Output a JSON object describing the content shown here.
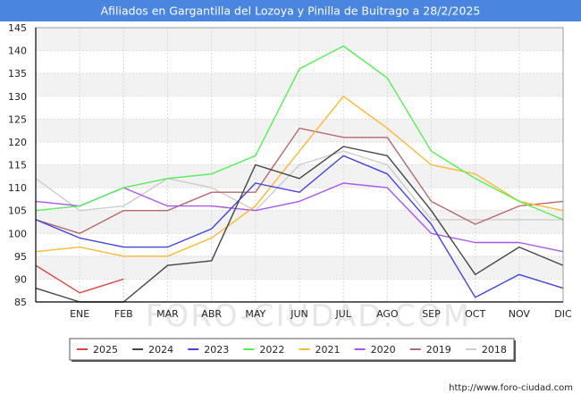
{
  "title": "Afiliados en Gargantilla del Lozoya y Pinilla de Buitrago a 28/2/2025",
  "watermark": "FORO-CIUDAD.COM",
  "source": "http://www.foro-ciudad.com",
  "colors": {
    "title_bg": "#4a86e0",
    "band": "#f2f2f2",
    "grid": "#d9d9d9",
    "axis": "#000000"
  },
  "chart_data": {
    "type": "line",
    "title": "Afiliados en Gargantilla del Lozoya y Pinilla de Buitrago a 28/2/2025",
    "x": [
      "",
      "ENE",
      "FEB",
      "MAR",
      "ABR",
      "MAY",
      "JUN",
      "JUL",
      "AGO",
      "SEP",
      "OCT",
      "NOV",
      "DIC"
    ],
    "ylim": [
      85,
      145
    ],
    "yticks": [
      85,
      90,
      95,
      100,
      105,
      110,
      115,
      120,
      125,
      130,
      135,
      140,
      145
    ],
    "grid": true,
    "legend_position": "bottom",
    "series": [
      {
        "name": "2025",
        "color": "#dd4444",
        "values": [
          93,
          87,
          90,
          null,
          null,
          null,
          null,
          null,
          null,
          null,
          null,
          null,
          null
        ]
      },
      {
        "name": "2024",
        "color": "#444444",
        "values": [
          88,
          85,
          85,
          93,
          94,
          115,
          112,
          119,
          117,
          105,
          91,
          97,
          93
        ]
      },
      {
        "name": "2023",
        "color": "#4444dd",
        "values": [
          103,
          99,
          97,
          97,
          101,
          111,
          109,
          117,
          113,
          102,
          86,
          91,
          88
        ]
      },
      {
        "name": "2022",
        "color": "#55ee55",
        "values": [
          105,
          106,
          110,
          112,
          113,
          117,
          136,
          141,
          134,
          118,
          112,
          107,
          103
        ]
      },
      {
        "name": "2021",
        "color": "#ffb733",
        "values": [
          96,
          97,
          95,
          95,
          99,
          106,
          118,
          130,
          123,
          115,
          113,
          107,
          105
        ]
      },
      {
        "name": "2020",
        "color": "#aa55ee",
        "values": [
          107,
          106,
          110,
          106,
          106,
          105,
          107,
          111,
          110,
          100,
          98,
          98,
          96
        ]
      },
      {
        "name": "2019",
        "color": "#b86a6a",
        "values": [
          103,
          100,
          105,
          105,
          109,
          109,
          123,
          121,
          121,
          107,
          102,
          106,
          107
        ]
      },
      {
        "name": "2018",
        "color": "#cccccc",
        "values": [
          112,
          105,
          106,
          112,
          110,
          105,
          115,
          118,
          115,
          103,
          103,
          103,
          103
        ]
      }
    ]
  }
}
